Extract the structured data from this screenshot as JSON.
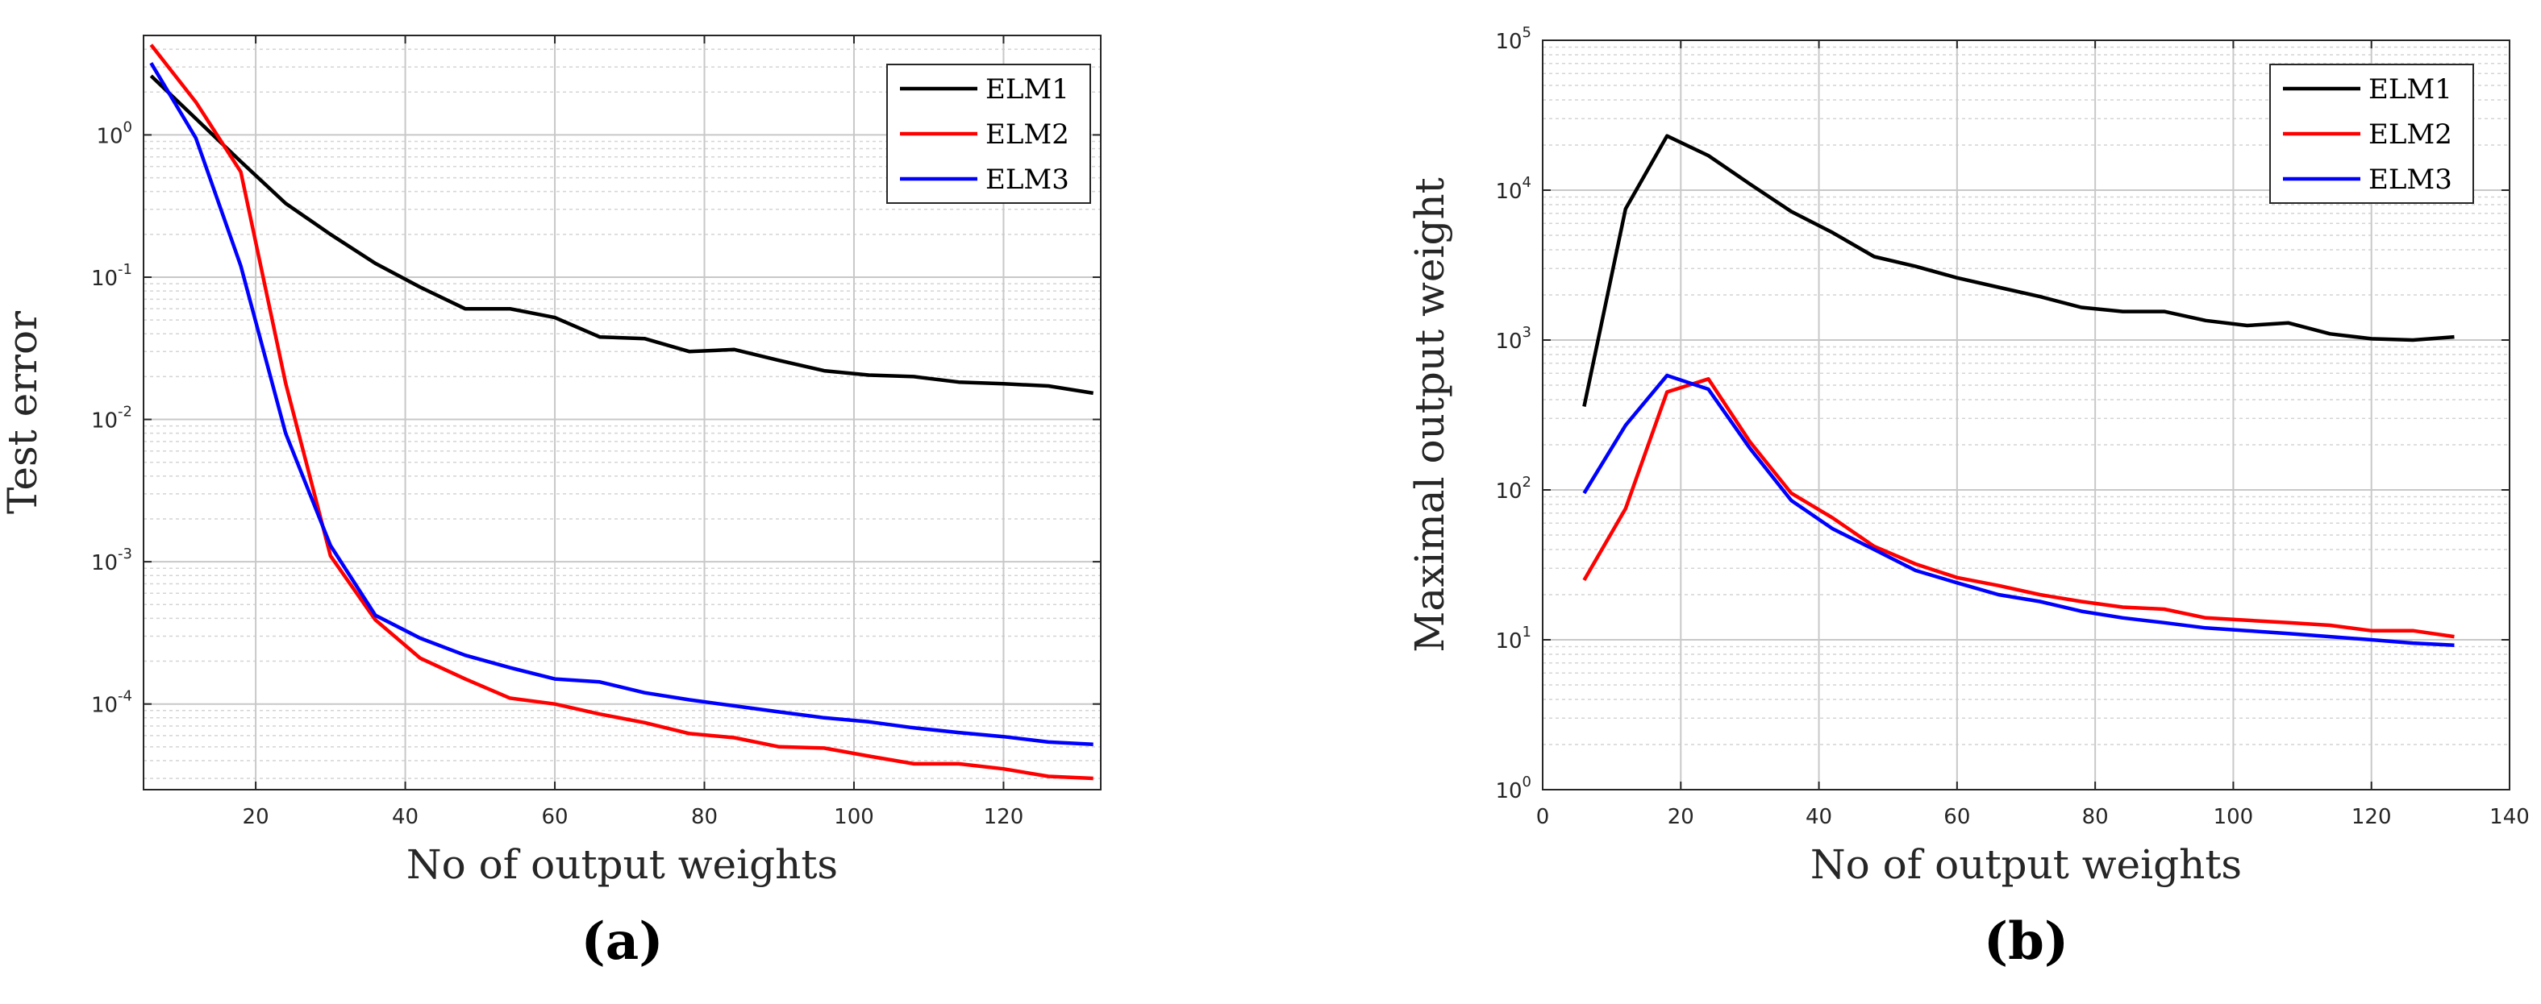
{
  "chart_data": [
    {
      "type": "line",
      "panel_label": "(a)",
      "xlabel": "No of output weights",
      "ylabel": "Test error",
      "xlim": [
        5,
        133
      ],
      "ylim": [
        2.5e-05,
        5
      ],
      "yscale": "log",
      "xticks": [
        20,
        40,
        60,
        80,
        100,
        120
      ],
      "xtick_labels": [
        "20",
        "40",
        "60",
        "80",
        "100",
        "120"
      ],
      "yticks": [
        0.0001,
        0.001,
        0.01,
        0.1,
        1
      ],
      "ytick_labels": [
        {
          "base": "10",
          "exp": "-4"
        },
        {
          "base": "10",
          "exp": "-3"
        },
        {
          "base": "10",
          "exp": "-2"
        },
        {
          "base": "10",
          "exp": "-1"
        },
        {
          "base": "10",
          "exp": "0"
        }
      ],
      "grid": true,
      "legend_position": "top-right",
      "x": [
        6,
        12,
        18,
        24,
        30,
        36,
        42,
        48,
        54,
        60,
        66,
        72,
        78,
        84,
        90,
        96,
        102,
        108,
        114,
        120,
        126,
        132
      ],
      "series": [
        {
          "name": "ELM1",
          "color": "#000000",
          "values": [
            2.6,
            1.3,
            0.65,
            0.33,
            0.2,
            0.125,
            0.085,
            0.06,
            0.06,
            0.052,
            0.038,
            0.037,
            0.03,
            0.031,
            0.026,
            0.022,
            0.0205,
            0.02,
            0.0183,
            0.0178,
            0.0172,
            0.0153
          ]
        },
        {
          "name": "ELM2",
          "color": "#ff0000",
          "values": [
            4.3,
            1.7,
            0.55,
            0.018,
            0.0011,
            0.00039,
            0.00021,
            0.00015,
            0.00011,
            0.0001,
            8.5e-05,
            7.4e-05,
            6.2e-05,
            5.8e-05,
            5e-05,
            4.9e-05,
            4.3e-05,
            3.8e-05,
            3.8e-05,
            3.5e-05,
            3.1e-05,
            3e-05
          ]
        },
        {
          "name": "ELM3",
          "color": "#0000ff",
          "values": [
            3.2,
            0.95,
            0.12,
            0.008,
            0.0013,
            0.00042,
            0.00029,
            0.00022,
            0.00018,
            0.00015,
            0.000143,
            0.00012,
            0.000107,
            9.7e-05,
            8.8e-05,
            8e-05,
            7.5e-05,
            6.8e-05,
            6.3e-05,
            5.9e-05,
            5.4e-05,
            5.2e-05
          ]
        }
      ]
    },
    {
      "type": "line",
      "panel_label": "(b)",
      "xlabel": "No of output weights",
      "ylabel": "Maximal output weight",
      "xlim": [
        0,
        140
      ],
      "ylim": [
        1,
        100000
      ],
      "yscale": "log",
      "xticks": [
        0,
        20,
        40,
        60,
        80,
        100,
        120,
        140
      ],
      "xtick_labels": [
        "0",
        "20",
        "40",
        "60",
        "80",
        "100",
        "120",
        "140"
      ],
      "yticks": [
        1,
        10,
        100,
        1000,
        10000,
        100000
      ],
      "ytick_labels": [
        {
          "base": "10",
          "exp": "0"
        },
        {
          "base": "10",
          "exp": "1"
        },
        {
          "base": "10",
          "exp": "2"
        },
        {
          "base": "10",
          "exp": "3"
        },
        {
          "base": "10",
          "exp": "4"
        },
        {
          "base": "10",
          "exp": "5"
        }
      ],
      "grid": true,
      "legend_position": "top-right",
      "x": [
        6,
        12,
        18,
        24,
        30,
        36,
        42,
        48,
        54,
        60,
        66,
        72,
        78,
        84,
        90,
        96,
        102,
        108,
        114,
        120,
        126,
        132
      ],
      "series": [
        {
          "name": "ELM1",
          "color": "#000000",
          "values": [
            360,
            7500,
            23000,
            17000,
            11000,
            7200,
            5200,
            3600,
            3100,
            2600,
            2250,
            1950,
            1650,
            1550,
            1550,
            1350,
            1250,
            1300,
            1100,
            1020,
            1000,
            1050
          ]
        },
        {
          "name": "ELM2",
          "color": "#ff0000",
          "values": [
            25,
            75,
            450,
            550,
            210,
            95,
            65,
            42,
            32,
            26,
            23,
            20,
            18,
            16.5,
            16,
            14,
            13.5,
            13,
            12.5,
            11.5,
            11.5,
            10.5
          ]
        },
        {
          "name": "ELM3",
          "color": "#0000ff",
          "values": [
            95,
            270,
            580,
            470,
            190,
            85,
            55,
            40,
            29,
            24,
            20,
            18,
            15.5,
            14,
            13,
            12,
            11.5,
            11,
            10.5,
            10,
            9.5,
            9.2
          ]
        }
      ]
    }
  ]
}
